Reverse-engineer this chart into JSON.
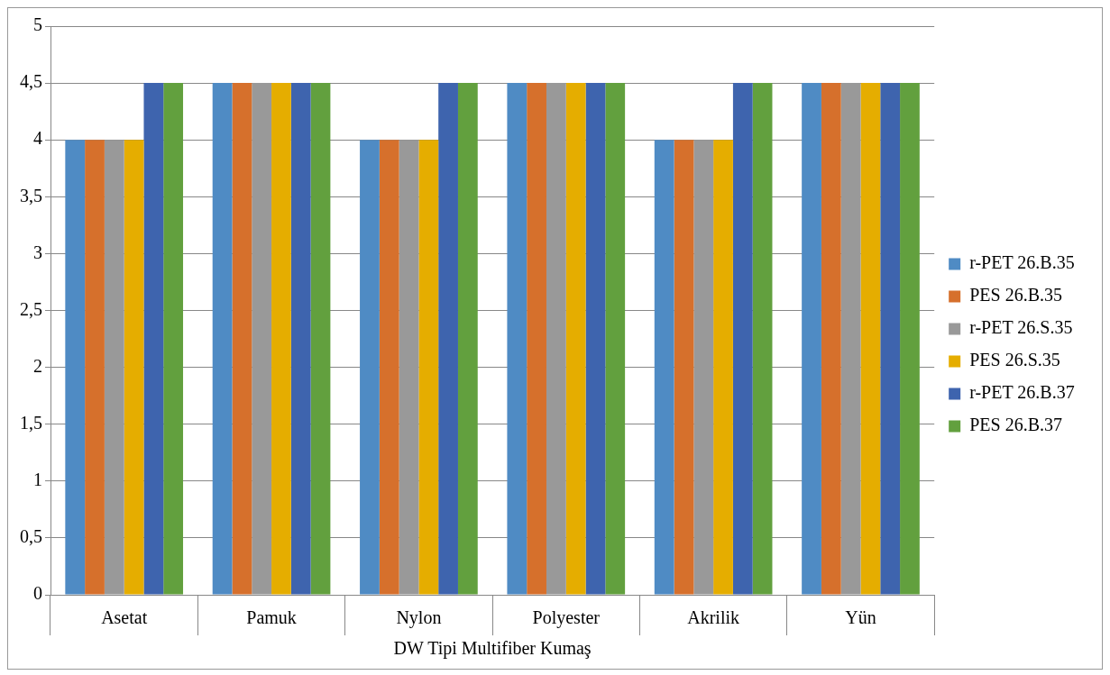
{
  "chart_data": {
    "type": "bar",
    "categories": [
      "Asetat",
      "Pamuk",
      "Nylon",
      "Polyester",
      "Akrilik",
      "Yün"
    ],
    "xlabel": "DW Tipi Multifiber Kumaş",
    "series": [
      {
        "name": "r-PET 26.B.35",
        "color": "#4f8bc4",
        "values": [
          4,
          4.5,
          4,
          4.5,
          4,
          4.5
        ]
      },
      {
        "name": "PES 26.B.35",
        "color": "#d6702c",
        "values": [
          4,
          4.5,
          4,
          4.5,
          4,
          4.5
        ]
      },
      {
        "name": "r-PET 26.S.35",
        "color": "#999999",
        "values": [
          4,
          4.5,
          4,
          4.5,
          4,
          4.5
        ]
      },
      {
        "name": "PES 26.S.35",
        "color": "#e5ad00",
        "values": [
          4,
          4.5,
          4,
          4.5,
          4,
          4.5
        ]
      },
      {
        "name": "r-PET 26.B.37",
        "color": "#3e64ae",
        "values": [
          4.5,
          4.5,
          4.5,
          4.5,
          4.5,
          4.5
        ]
      },
      {
        "name": "PES 26.B.37",
        "color": "#62a03e",
        "values": [
          4.5,
          4.5,
          4.5,
          4.5,
          4.5,
          4.5
        ]
      }
    ],
    "ylim": [
      0,
      5
    ],
    "yticks": [
      0,
      {
        "value": 0.5,
        "label": "0,5"
      },
      1,
      {
        "value": 1.5,
        "label": "1,5"
      },
      2,
      {
        "value": 2.5,
        "label": "2,5"
      },
      3,
      {
        "value": 3.5,
        "label": "3,5"
      },
      4,
      {
        "value": 4.5,
        "label": "4,5"
      },
      5
    ],
    "grid": "y",
    "legend": "right"
  }
}
